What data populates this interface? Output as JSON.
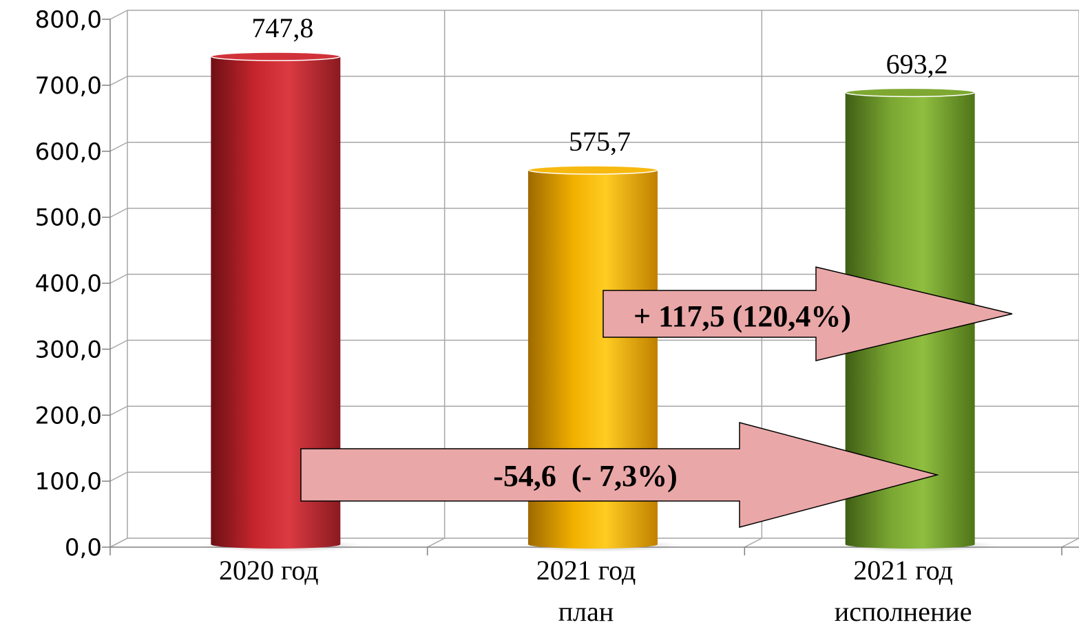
{
  "chart_data": {
    "type": "bar",
    "categories": [
      [
        "2020 год"
      ],
      [
        "2021 год",
        "план"
      ],
      [
        "2021 год",
        "исполнение"
      ]
    ],
    "values": [
      747.8,
      575.7,
      693.2
    ],
    "value_labels": [
      "747,8",
      "575,7",
      "693,2"
    ],
    "colors": [
      "#d1323a",
      "#f7b90f",
      "#7ea832"
    ],
    "ylim": [
      0,
      800
    ],
    "yticks": [
      0,
      100,
      200,
      300,
      400,
      500,
      600,
      700,
      800
    ],
    "ytick_labels": [
      "0,0",
      "100,0",
      "200,0",
      "300,0",
      "400,0",
      "500,0",
      "600,0",
      "700,0",
      "800,0"
    ],
    "grid": true,
    "annotations": [
      {
        "text": "+ 117,5 (120,4%)",
        "from": "2021 год план",
        "to": "2021 год исполнение",
        "color": "#eaa7a7"
      },
      {
        "text": "-54,6  (- 7,3%)",
        "from": "2020 год",
        "to": "2021 год исполнение",
        "color": "#eaa7a7"
      }
    ]
  }
}
